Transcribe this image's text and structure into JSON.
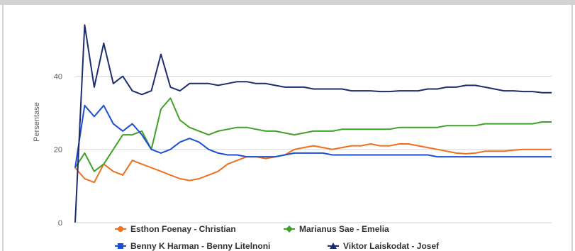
{
  "chart_data": {
    "type": "line",
    "title": "",
    "xlabel": "",
    "ylabel": "Persentase",
    "ylim": [
      0,
      55
    ],
    "yticks": [
      0,
      20,
      40
    ],
    "grid": true,
    "legend_position": "bottom",
    "series": [
      {
        "name": "Esthon Foenay - Christian",
        "color": "#ee6f1d",
        "marker": "circle",
        "values": [
          15,
          12,
          11,
          16,
          14,
          13,
          17,
          16,
          15,
          14,
          13,
          12,
          11.5,
          12,
          13,
          14,
          16,
          17,
          18,
          18,
          17.5,
          18,
          18.5,
          20,
          20.5,
          21,
          20.5,
          20,
          20.5,
          21,
          21,
          21.5,
          21,
          21,
          21.5,
          21.5,
          21,
          20.5,
          20,
          19.5,
          19,
          18.8,
          19,
          19.5,
          19.5,
          19.5,
          19.8,
          20,
          20,
          20,
          20
        ]
      },
      {
        "name": "Marianus Sae - Emelia",
        "color": "#3fa127",
        "marker": "diamond",
        "values": [
          15,
          19,
          14,
          16,
          20,
          24,
          24,
          25,
          20,
          31,
          34,
          28,
          26,
          25,
          24,
          25,
          25.5,
          26,
          26,
          25.5,
          25,
          25,
          24.5,
          24,
          24.5,
          25,
          25,
          25,
          25.5,
          25.5,
          25.5,
          25.5,
          25.5,
          25.5,
          26,
          26,
          26,
          26,
          26,
          26.5,
          26.5,
          26.5,
          26.5,
          27,
          27,
          27,
          27,
          27,
          27,
          27.5,
          27.5
        ]
      },
      {
        "name": "Benny K Harman - Benny Litelnoni",
        "color": "#1a4fd6",
        "marker": "square",
        "values": [
          15,
          32,
          29,
          32,
          27,
          25,
          27,
          24,
          20,
          19,
          20,
          22,
          23,
          22,
          20,
          19,
          18.5,
          18.5,
          18,
          18,
          18,
          18,
          18.5,
          19,
          19,
          19,
          19,
          18.5,
          18.5,
          18.5,
          18.5,
          18.5,
          18.5,
          18.5,
          18.5,
          18.5,
          18.5,
          18.5,
          18,
          18,
          18,
          18,
          18,
          18,
          18,
          18,
          18,
          18,
          18,
          18,
          18
        ]
      },
      {
        "name": "Viktor Laiskodat - Josef",
        "color": "#1c2d6e",
        "marker": "triangle",
        "values": [
          0,
          54,
          37,
          49,
          38,
          40,
          36,
          35,
          36,
          46,
          37,
          36,
          38,
          38,
          38,
          37.5,
          38,
          38.5,
          38.5,
          38,
          38,
          37.5,
          37,
          37,
          37,
          36.5,
          36.5,
          36.5,
          36.5,
          36,
          36,
          36,
          35.8,
          35.8,
          36,
          36,
          36,
          36.5,
          36.5,
          37,
          37,
          37.5,
          37.5,
          37,
          36.5,
          36,
          36,
          35.8,
          35.8,
          35.5,
          35.5
        ]
      }
    ]
  }
}
